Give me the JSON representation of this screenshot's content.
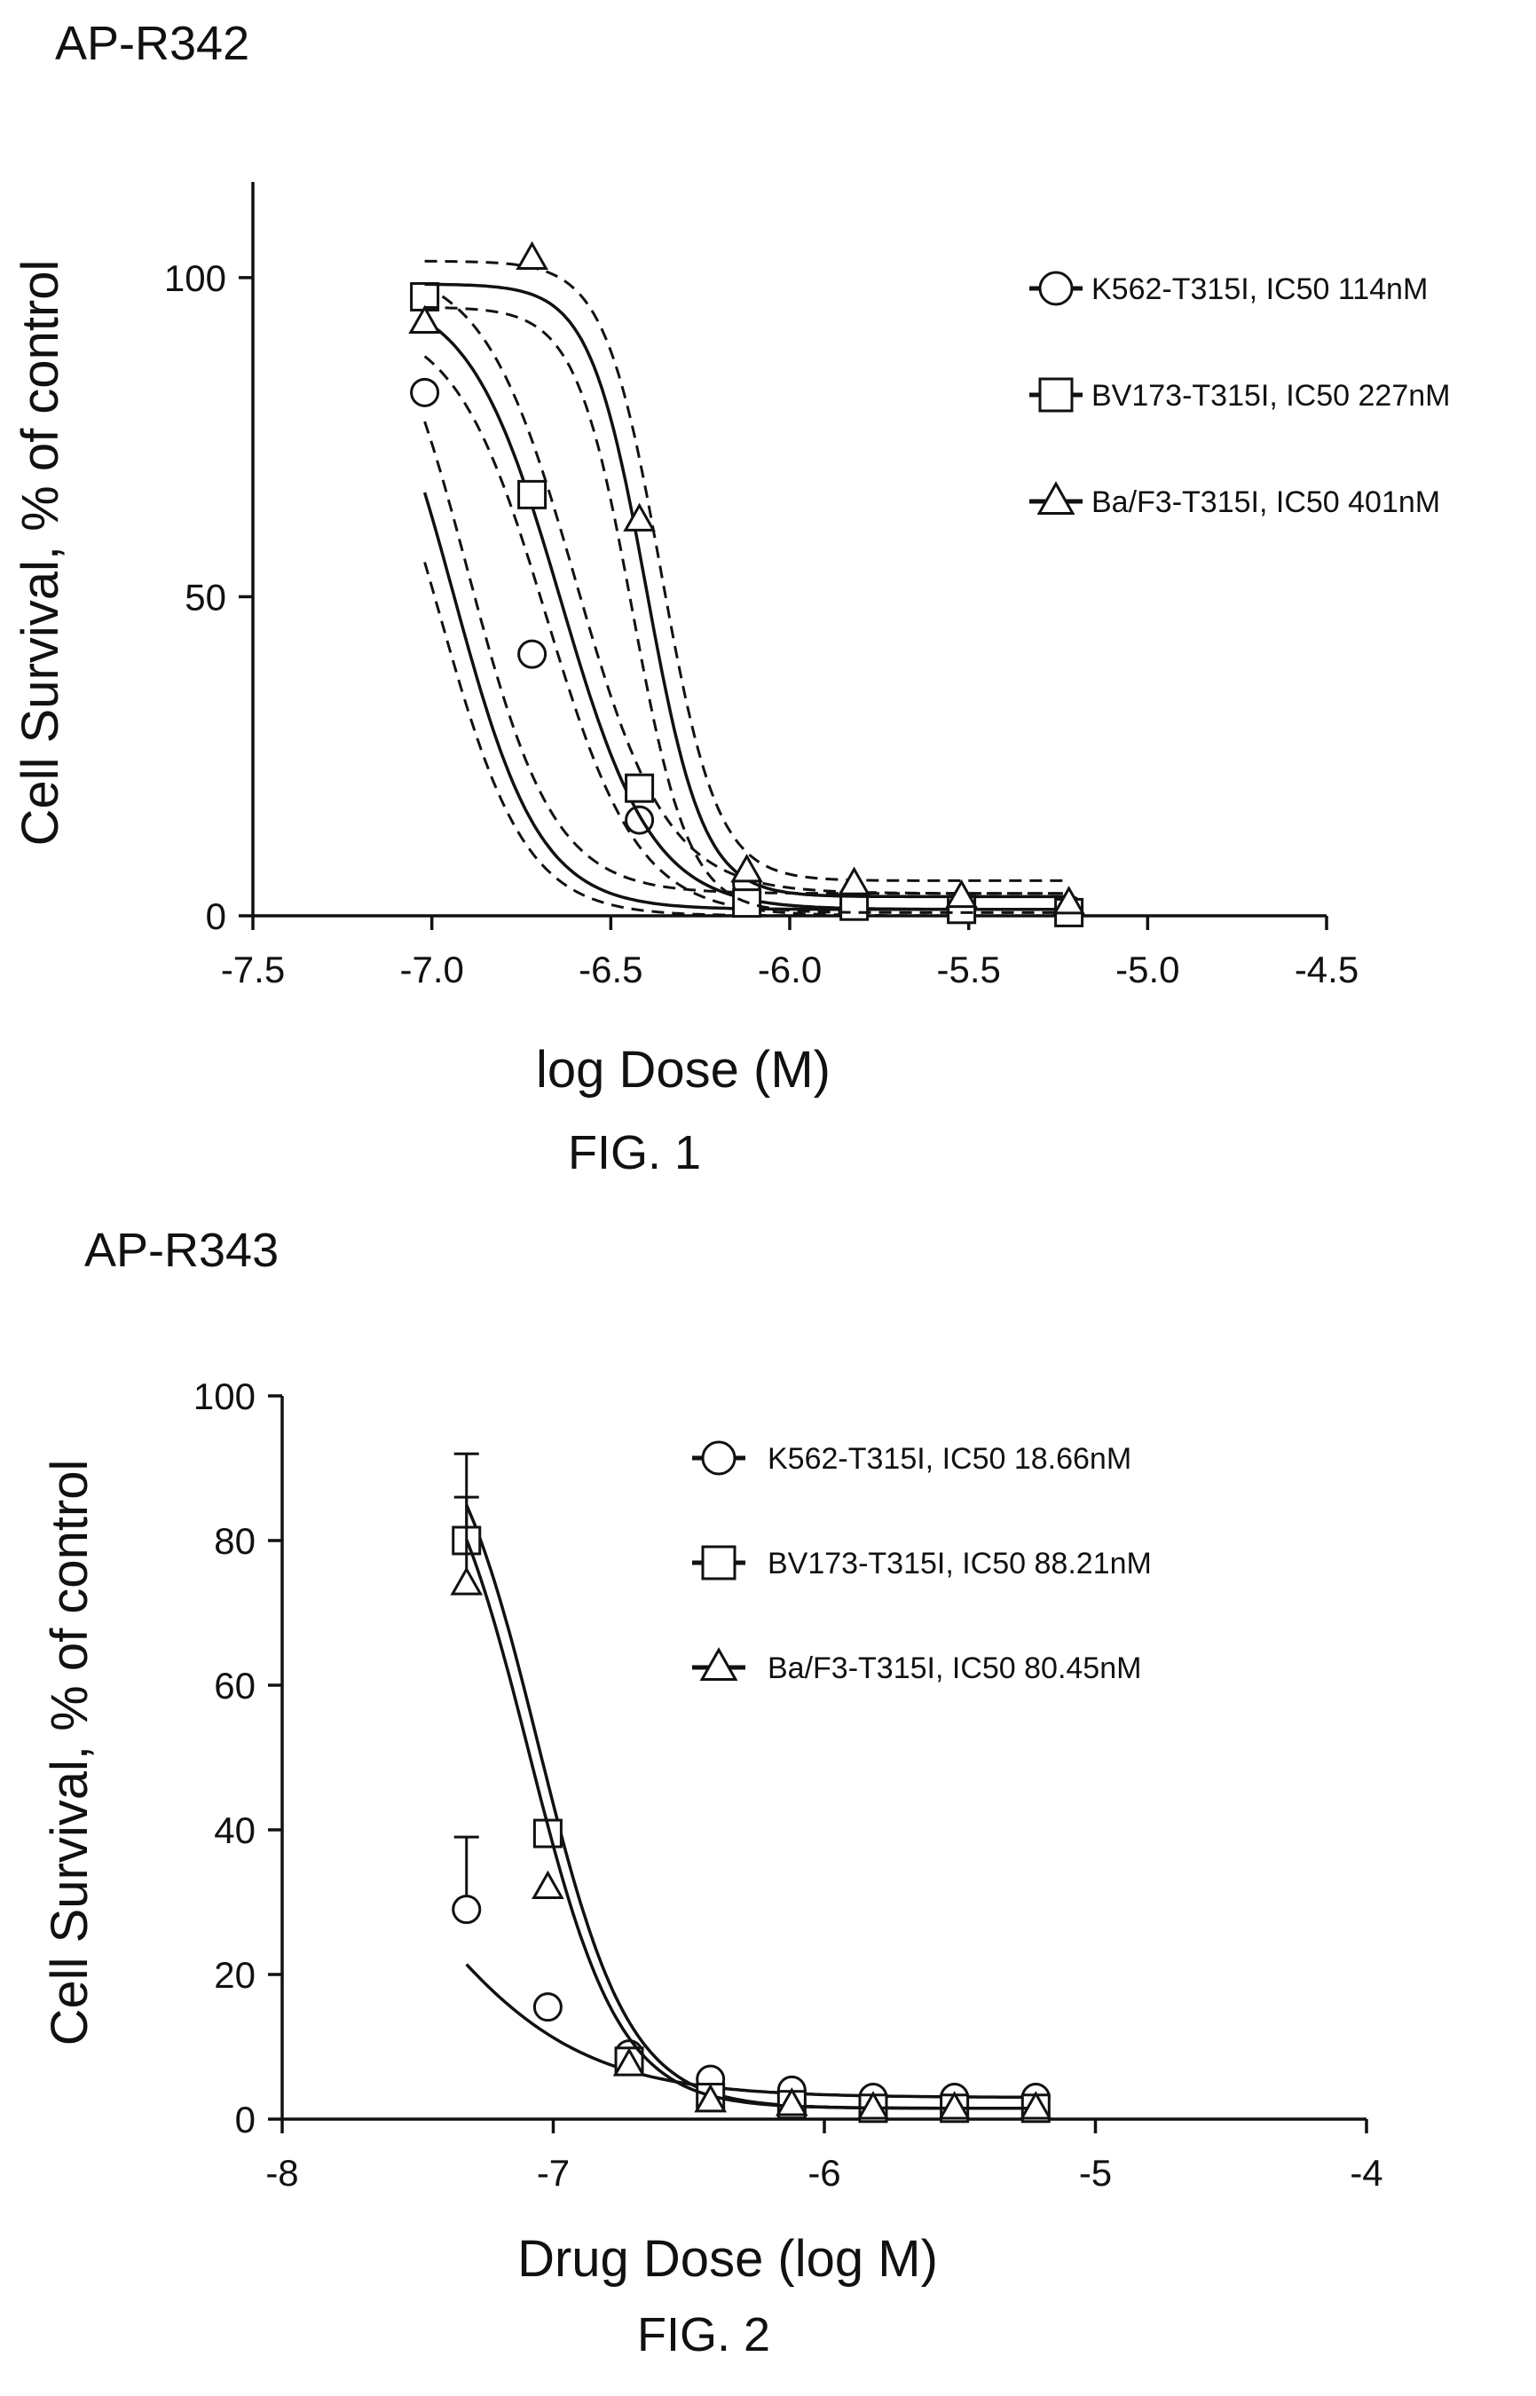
{
  "figures": [
    {
      "caption": "FIG. 1"
    },
    {
      "caption": "FIG. 2"
    }
  ],
  "chart_data": [
    {
      "type": "line",
      "title": "AP-R342",
      "xlabel": "log Dose (M)",
      "ylabel": "Cell Survival, % of control",
      "xlim": [
        -7.5,
        -4.5
      ],
      "ylim": [
        0,
        115
      ],
      "xticks": [
        -7.5,
        -7.0,
        -6.5,
        -6.0,
        -5.5,
        -5.0,
        -4.5
      ],
      "xtick_labels": [
        "-7.5",
        "-7.0",
        "-6.5",
        "-6.0",
        "-5.5",
        "-5.0",
        "-4.5"
      ],
      "yticks": [
        0,
        50,
        100
      ],
      "ytick_labels": [
        "0",
        "50",
        "100"
      ],
      "grid": false,
      "legend_position": "top-right",
      "series": [
        {
          "name": "K562-T315I, IC50 114nM",
          "marker": "circle",
          "x": [
            -7.02,
            -6.72,
            -6.42,
            -6.12,
            -5.82,
            -5.52,
            -5.22
          ],
          "values": [
            82,
            41,
            15,
            5,
            2,
            1.5,
            1
          ],
          "fit": {
            "top": 100,
            "bottom": 1,
            "logIC50": -6.94,
            "hill": 3.6
          },
          "ci": {
            "band": 8
          }
        },
        {
          "name": "BV173-T315I, IC50 227nM",
          "marker": "square",
          "x": [
            -7.02,
            -6.72,
            -6.42,
            -6.12,
            -5.82,
            -5.52,
            -5.22
          ],
          "values": [
            97,
            66,
            20,
            2,
            1.5,
            1,
            0.5
          ],
          "fit": {
            "top": 98,
            "bottom": 1,
            "logIC50": -6.64,
            "hill": 3.4
          },
          "ci": {
            "band": 7
          }
        },
        {
          "name": "Ba/F3-T315I, IC50 401nM",
          "marker": "triangle",
          "x": [
            -7.02,
            -6.72,
            -6.42,
            -6.12,
            -5.82,
            -5.52,
            -5.22
          ],
          "values": [
            93,
            103,
            62,
            7,
            5,
            3,
            2
          ],
          "fit": {
            "top": 99,
            "bottom": 3,
            "logIC50": -6.4,
            "hill": 5.5
          },
          "ci": {
            "band": 6
          }
        }
      ]
    },
    {
      "type": "line",
      "title": "AP-R343",
      "xlabel": "Drug Dose (log M)",
      "ylabel": "Cell Survival, % of control",
      "xlim": [
        -8,
        -4
      ],
      "ylim": [
        0,
        100
      ],
      "xticks": [
        -8,
        -7,
        -6,
        -5,
        -4
      ],
      "xtick_labels": [
        "-8",
        "-7",
        "-6",
        "-5",
        "-4"
      ],
      "yticks": [
        0,
        20,
        40,
        60,
        80,
        100
      ],
      "ytick_labels": [
        "0",
        "20",
        "40",
        "60",
        "80",
        "100"
      ],
      "grid": false,
      "legend_position": "top-right",
      "series": [
        {
          "name": "K562-T315I, IC50 18.66nM",
          "marker": "circle",
          "x": [
            -7.32,
            -7.02,
            -6.72,
            -6.42,
            -6.12,
            -5.82,
            -5.52,
            -5.22
          ],
          "values": [
            29,
            15.5,
            9,
            5.5,
            4,
            3,
            3,
            3
          ],
          "error_up": [
            10,
            0,
            0,
            0,
            0,
            0,
            0,
            0
          ],
          "fit": {
            "top": 60,
            "bottom": 3,
            "logIC50": -7.55,
            "hill": 1.4
          }
        },
        {
          "name": "BV173-T315I, IC50 88.21nM",
          "marker": "square",
          "x": [
            -7.32,
            -7.02,
            -6.72,
            -6.42,
            -6.12,
            -5.82,
            -5.52,
            -5.22
          ],
          "values": [
            80,
            39.5,
            8,
            3,
            2,
            1.5,
            1.5,
            1.5
          ],
          "error_up": [
            12,
            0,
            0,
            0,
            0,
            0,
            0,
            0
          ],
          "fit": {
            "top": 102,
            "bottom": 1.5,
            "logIC50": -7.055,
            "hill": 2.6
          }
        },
        {
          "name": "Ba/F3-T315I, IC50 80.45nM",
          "marker": "triangle",
          "x": [
            -7.32,
            -7.02,
            -6.72,
            -6.42,
            -6.12,
            -5.82,
            -5.52,
            -5.22
          ],
          "values": [
            74,
            32,
            7.5,
            2.5,
            2,
            1.5,
            1.5,
            1.5
          ],
          "error_up": [
            12,
            0,
            0,
            0,
            0,
            0,
            0,
            0
          ],
          "fit": {
            "top": 100,
            "bottom": 1.5,
            "logIC50": -7.09,
            "hill": 2.6
          }
        }
      ]
    }
  ]
}
